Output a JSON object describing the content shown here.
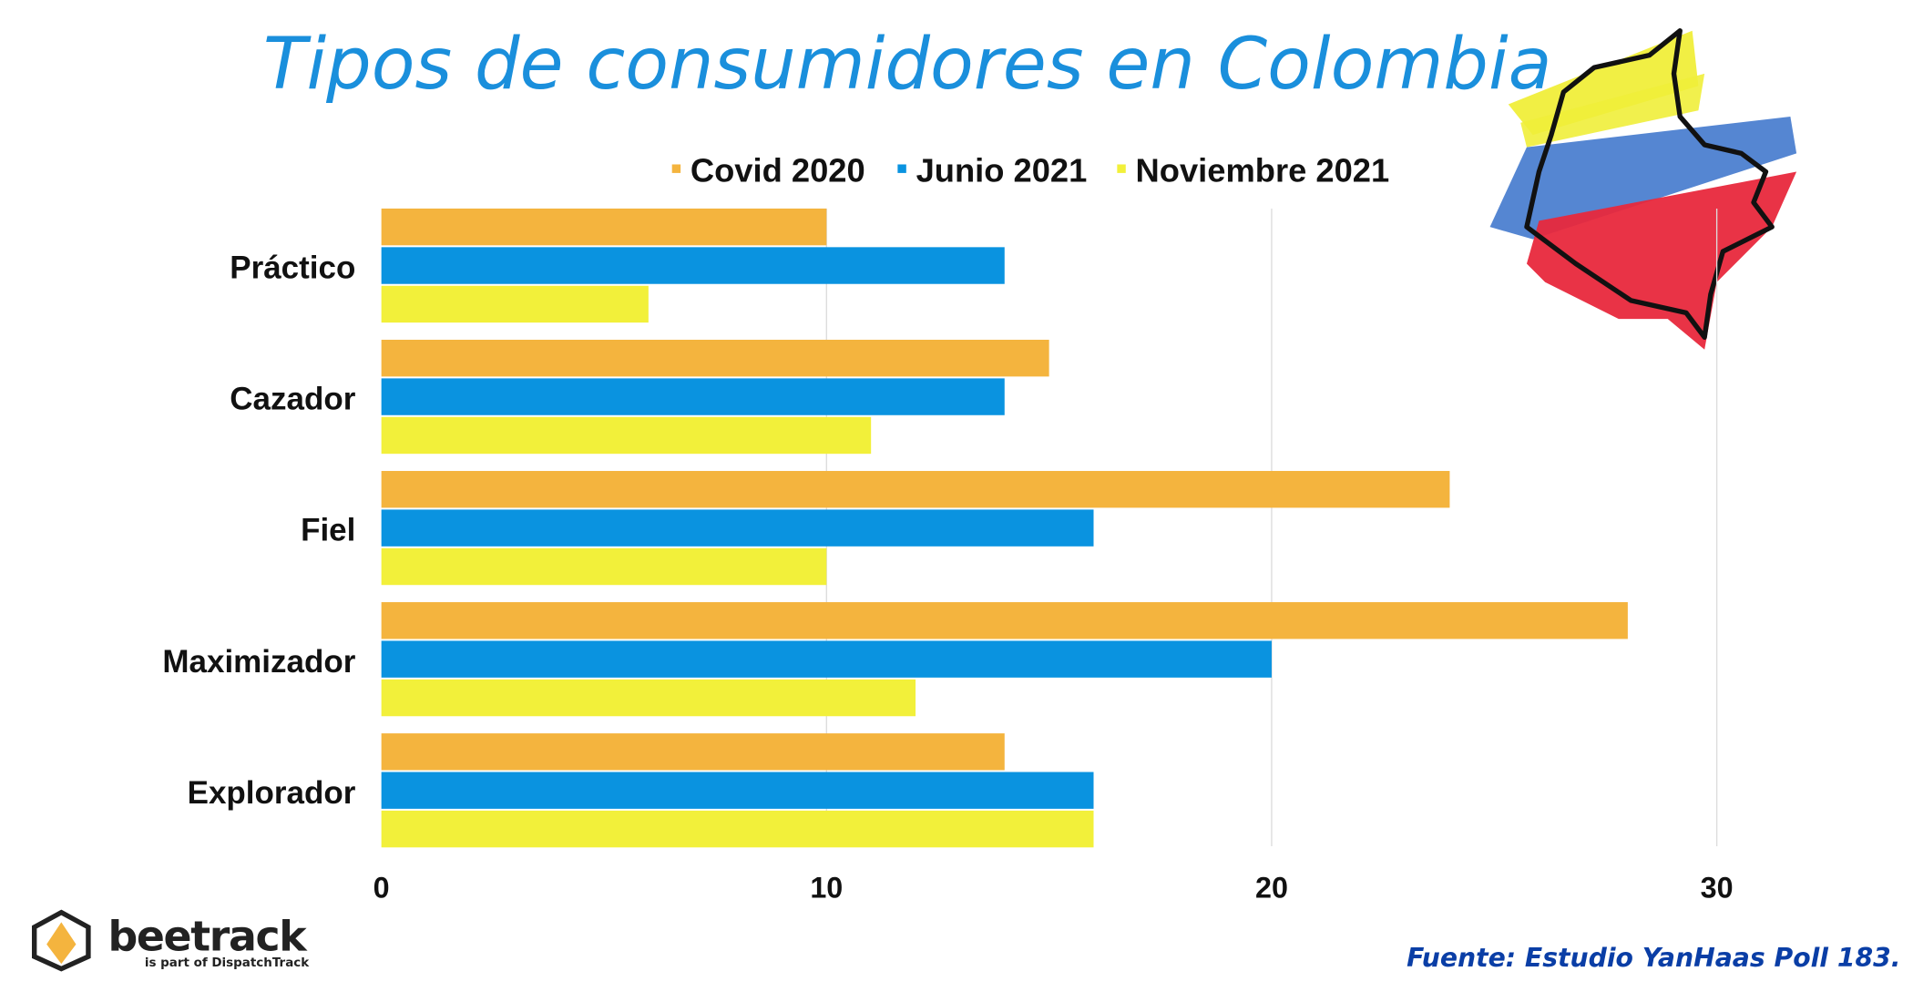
{
  "chart_data": {
    "type": "bar",
    "orientation": "horizontal",
    "title": "Tipos de consumidores en Colombia",
    "categories": [
      "Práctico",
      "Cazador",
      "Fiel",
      "Maximizador",
      "Explorador"
    ],
    "series": [
      {
        "name": "Covid 2020",
        "color": "#f4b43e",
        "values": [
          10,
          15,
          24,
          28,
          14
        ]
      },
      {
        "name": "Junio 2021",
        "color": "#0a93e0",
        "values": [
          14,
          14,
          16,
          20,
          16
        ]
      },
      {
        "name": "Noviembre 2021",
        "color": "#f2f03a",
        "values": [
          6,
          11,
          10,
          12,
          16
        ]
      }
    ],
    "xlim": [
      0,
      30
    ],
    "xticks": [
      "0",
      "10",
      "20",
      "30"
    ],
    "grid": true,
    "legend_position": "top"
  },
  "source": "Fuente: Estudio YanHaas Poll 183.",
  "logo": {
    "name": "beetrack",
    "tagline": "is part of DispatchTrack"
  }
}
